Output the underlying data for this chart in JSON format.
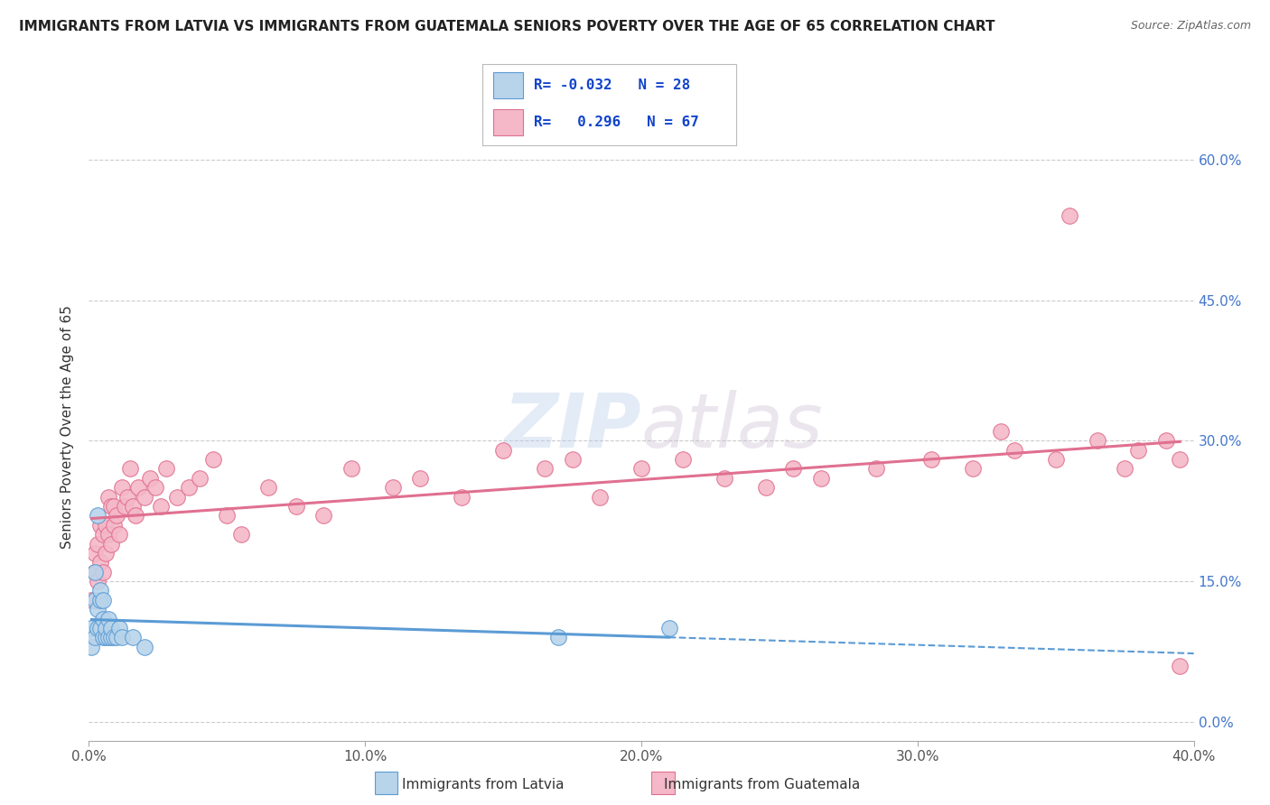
{
  "title": "IMMIGRANTS FROM LATVIA VS IMMIGRANTS FROM GUATEMALA SENIORS POVERTY OVER THE AGE OF 65 CORRELATION CHART",
  "source": "Source: ZipAtlas.com",
  "xlabel_bottom": [
    "Immigrants from Latvia",
    "Immigrants from Guatemala"
  ],
  "ylabel": "Seniors Poverty Over the Age of 65",
  "xlim": [
    0.0,
    0.4
  ],
  "ylim": [
    -0.02,
    0.65
  ],
  "xticks": [
    0.0,
    0.1,
    0.2,
    0.3,
    0.4
  ],
  "xtick_labels": [
    "0.0%",
    "10.0%",
    "20.0%",
    "30.0%",
    "40.0%"
  ],
  "yticks": [
    0.0,
    0.15,
    0.3,
    0.45,
    0.6
  ],
  "ytick_labels": [
    "0.0%",
    "15.0%",
    "30.0%",
    "45.0%",
    "60.0%"
  ],
  "latvia_color": "#b8d4ea",
  "latvia_edge": "#5b9bd5",
  "guatemala_color": "#f4b8c8",
  "guatemala_edge": "#e07090",
  "trend_latvia_color": "#5b9bd5",
  "trend_guatemala_color": "#e07090",
  "legend_R_latvia": "-0.032",
  "legend_N_latvia": "28",
  "legend_R_guatemala": "0.296",
  "legend_N_guatemala": "67",
  "latvia_x": [
    0.001,
    0.001,
    0.002,
    0.002,
    0.002,
    0.003,
    0.003,
    0.003,
    0.004,
    0.004,
    0.004,
    0.005,
    0.005,
    0.005,
    0.006,
    0.006,
    0.007,
    0.007,
    0.008,
    0.008,
    0.009,
    0.01,
    0.011,
    0.012,
    0.016,
    0.02,
    0.17,
    0.21
  ],
  "latvia_y": [
    0.08,
    0.1,
    0.09,
    0.13,
    0.16,
    0.1,
    0.12,
    0.22,
    0.1,
    0.13,
    0.14,
    0.09,
    0.11,
    0.13,
    0.09,
    0.1,
    0.09,
    0.11,
    0.09,
    0.1,
    0.09,
    0.09,
    0.1,
    0.09,
    0.09,
    0.08,
    0.09,
    0.1
  ],
  "guatemala_x": [
    0.001,
    0.002,
    0.002,
    0.003,
    0.003,
    0.004,
    0.004,
    0.005,
    0.005,
    0.006,
    0.006,
    0.007,
    0.007,
    0.008,
    0.008,
    0.009,
    0.009,
    0.01,
    0.011,
    0.012,
    0.013,
    0.014,
    0.015,
    0.016,
    0.017,
    0.018,
    0.02,
    0.022,
    0.024,
    0.026,
    0.028,
    0.032,
    0.036,
    0.04,
    0.045,
    0.05,
    0.055,
    0.065,
    0.075,
    0.085,
    0.095,
    0.11,
    0.12,
    0.135,
    0.15,
    0.165,
    0.175,
    0.185,
    0.2,
    0.215,
    0.23,
    0.245,
    0.255,
    0.265,
    0.285,
    0.305,
    0.32,
    0.335,
    0.35,
    0.365,
    0.375,
    0.355,
    0.38,
    0.39,
    0.395,
    0.33,
    0.395
  ],
  "guatemala_y": [
    0.13,
    0.16,
    0.18,
    0.15,
    0.19,
    0.17,
    0.21,
    0.16,
    0.2,
    0.21,
    0.18,
    0.24,
    0.2,
    0.23,
    0.19,
    0.21,
    0.23,
    0.22,
    0.2,
    0.25,
    0.23,
    0.24,
    0.27,
    0.23,
    0.22,
    0.25,
    0.24,
    0.26,
    0.25,
    0.23,
    0.27,
    0.24,
    0.25,
    0.26,
    0.28,
    0.22,
    0.2,
    0.25,
    0.23,
    0.22,
    0.27,
    0.25,
    0.26,
    0.24,
    0.29,
    0.27,
    0.28,
    0.24,
    0.27,
    0.28,
    0.26,
    0.25,
    0.27,
    0.26,
    0.27,
    0.28,
    0.27,
    0.29,
    0.28,
    0.3,
    0.27,
    0.54,
    0.29,
    0.3,
    0.28,
    0.31,
    0.06
  ]
}
